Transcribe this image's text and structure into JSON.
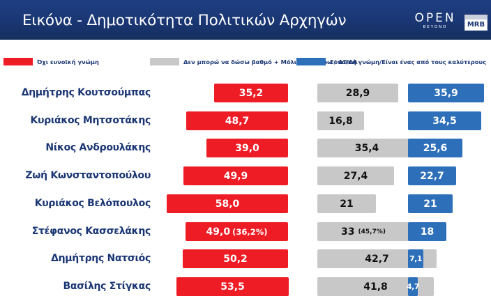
{
  "header": {
    "title": "Εικόνα - Δημοτικότητα Πολιτικών Αρχηγών",
    "logo_open": "OPEN",
    "logo_open_sub": "BEYOND",
    "logo_mrb": "MRB"
  },
  "colors": {
    "header_bg": "#1a3673",
    "unfavorable": "#ee1c25",
    "neutral": "#c8c8c8",
    "favorable": "#2e6fba",
    "name_text": "#1a3673"
  },
  "legend": [
    {
      "label": "Όχι ευνοϊκή γνώμη",
      "color": "#ee1c25"
    },
    {
      "label": "Δεν μπορώ να δώσω βαθμό + Μόλις που ξέρω / ΔΞ/ΔΑ",
      "color": "#c8c8c8"
    },
    {
      "label": "Ευνοϊκή γνώμη/Είναι ένας από τους καλύτερους",
      "color": "#2e6fba"
    }
  ],
  "chart_data": {
    "type": "bar",
    "orientation": "horizontal",
    "categories": [
      "Δημήτρης Κουτσούμπας",
      "Κυριάκος Μητσοτάκης",
      "Νίκος Ανδρουλάκης",
      "Ζωή Κωνσταντοπούλου",
      "Κυριάκος Βελόπουλος",
      "Στέφανος Κασσελάκης",
      "Δημήτρης Νατσιός",
      "Βασίλης Στίγκας"
    ],
    "series": [
      {
        "name": "Όχι ευνοϊκή γνώμη",
        "values": [
          35.2,
          48.7,
          39.0,
          49.9,
          58.0,
          49.0,
          50.2,
          53.5
        ],
        "labels": [
          "35,2",
          "48,7",
          "39,0",
          "49,9",
          "58,0",
          "49,0",
          "50,2",
          "53,5"
        ],
        "extra_labels": [
          "",
          "",
          "",
          "",
          "",
          "(36,2%)",
          "",
          ""
        ]
      },
      {
        "name": "Δεν μπορώ να δώσω βαθμό + Μόλις που ξέρω / ΔΞ/ΔΑ",
        "values": [
          28.9,
          16.8,
          35.4,
          27.4,
          21,
          33,
          42.7,
          41.8
        ],
        "labels": [
          "28,9",
          "16,8",
          "35,4",
          "27,4",
          "21",
          "33",
          "42,7",
          "41,8"
        ],
        "extra_labels": [
          "",
          "",
          "",
          "",
          "",
          "(45,7%)",
          "",
          ""
        ]
      },
      {
        "name": "Ευνοϊκή γνώμη/Είναι ένας από τους καλύτερους",
        "values": [
          35.9,
          34.5,
          25.6,
          22.7,
          21,
          18,
          7.1,
          4.7
        ],
        "labels": [
          "35,9",
          "34,5",
          "25,6",
          "22,7",
          "21",
          "18",
          "7,1",
          "4,7"
        ],
        "extra_labels": [
          "",
          "",
          "",
          "",
          "",
          "",
          "",
          ""
        ]
      }
    ],
    "xlabel": "",
    "ylabel": "",
    "grid": false,
    "legend_position": "top"
  }
}
